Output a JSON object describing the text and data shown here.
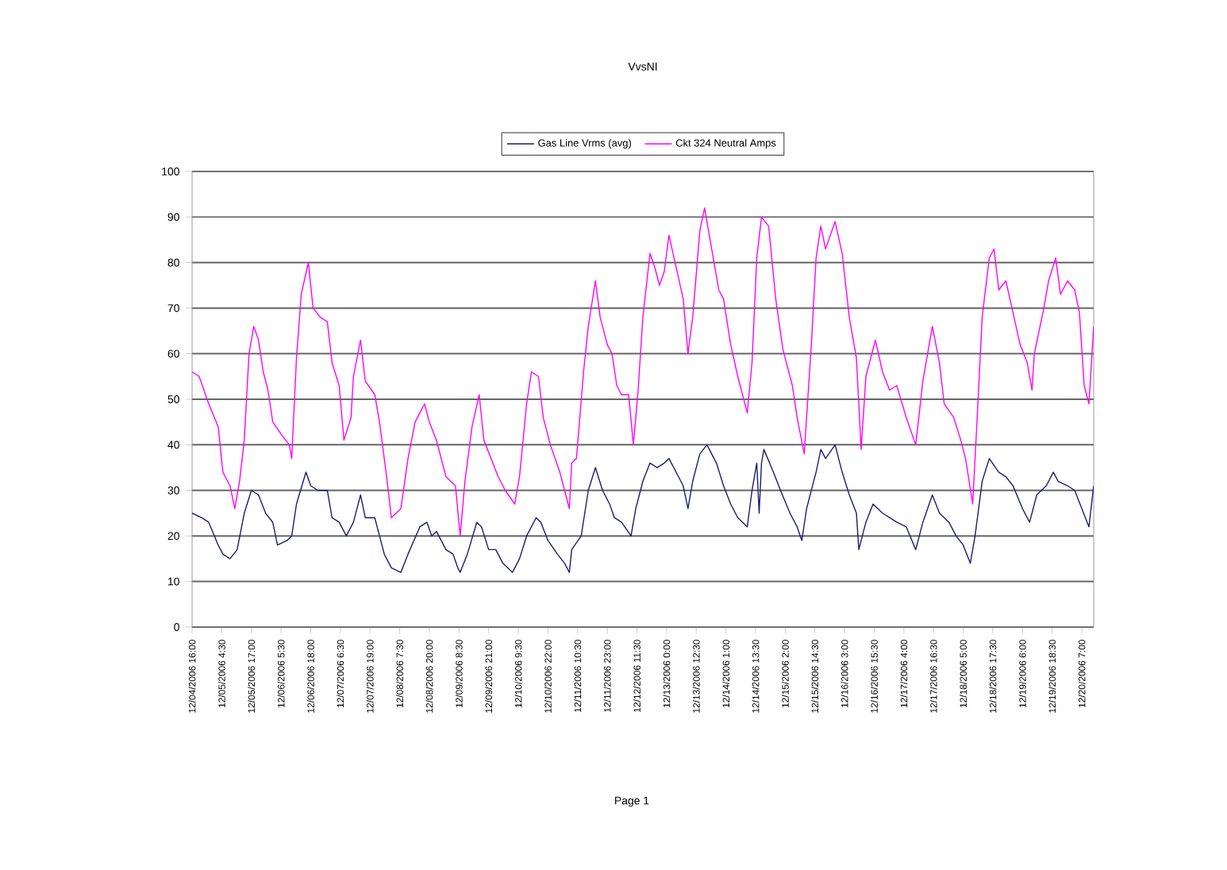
{
  "chart_data": {
    "type": "line",
    "title": "VvsNI",
    "xlim": [
      "2006-12-04T16:00",
      "2006-12-20T12:00"
    ],
    "ylim": [
      0,
      100
    ],
    "yticks": [
      0,
      10,
      20,
      30,
      40,
      50,
      60,
      70,
      80,
      90,
      100
    ],
    "xticks": [
      {
        "value": "2006-12-04T16:00",
        "label": "12/04/2006 16:00"
      },
      {
        "value": "2006-12-05T04:30",
        "label": "12/05/2006 4:30"
      },
      {
        "value": "2006-12-05T17:00",
        "label": "12/05/2006 17:00"
      },
      {
        "value": "2006-12-06T05:30",
        "label": "12/06/2006 5:30"
      },
      {
        "value": "2006-12-06T18:00",
        "label": "12/06/2006 18:00"
      },
      {
        "value": "2006-12-07T06:30",
        "label": "12/07/2006 6:30"
      },
      {
        "value": "2006-12-07T19:00",
        "label": "12/07/2006 19:00"
      },
      {
        "value": "2006-12-08T07:30",
        "label": "12/08/2006 7:30"
      },
      {
        "value": "2006-12-08T20:00",
        "label": "12/08/2006 20:00"
      },
      {
        "value": "2006-12-09T08:30",
        "label": "12/09/2006 8:30"
      },
      {
        "value": "2006-12-09T21:00",
        "label": "12/09/2006 21:00"
      },
      {
        "value": "2006-12-10T09:30",
        "label": "12/10/2006 9:30"
      },
      {
        "value": "2006-12-10T22:00",
        "label": "12/10/2006 22:00"
      },
      {
        "value": "2006-12-11T10:30",
        "label": "12/11/2006 10:30"
      },
      {
        "value": "2006-12-11T23:00",
        "label": "12/11/2006 23:00"
      },
      {
        "value": "2006-12-12T11:30",
        "label": "12/12/2006 11:30"
      },
      {
        "value": "2006-12-13T00:00",
        "label": "12/13/2006 0:00"
      },
      {
        "value": "2006-12-13T12:30",
        "label": "12/13/2006 12:30"
      },
      {
        "value": "2006-12-14T01:00",
        "label": "12/14/2006 1:00"
      },
      {
        "value": "2006-12-14T13:30",
        "label": "12/14/2006 13:30"
      },
      {
        "value": "2006-12-15T02:00",
        "label": "12/15/2006 2:00"
      },
      {
        "value": "2006-12-15T14:30",
        "label": "12/15/2006 14:30"
      },
      {
        "value": "2006-12-16T03:00",
        "label": "12/16/2006 3:00"
      },
      {
        "value": "2006-12-16T15:30",
        "label": "12/16/2006 15:30"
      },
      {
        "value": "2006-12-17T04:00",
        "label": "12/17/2006 4:00"
      },
      {
        "value": "2006-12-17T16:30",
        "label": "12/17/2006 16:30"
      },
      {
        "value": "2006-12-18T05:00",
        "label": "12/18/2006 5:00"
      },
      {
        "value": "2006-12-18T17:30",
        "label": "12/18/2006 17:30"
      },
      {
        "value": "2006-12-19T06:00",
        "label": "12/19/2006 6:00"
      },
      {
        "value": "2006-12-19T18:30",
        "label": "12/19/2006 18:30"
      },
      {
        "value": "2006-12-20T07:00",
        "label": "12/20/2006 7:00"
      }
    ],
    "grid": "y",
    "legend": "top",
    "marker": "none",
    "line_style": "solid",
    "annotations": [
      "Page 1"
    ],
    "series": [
      {
        "name": "Gas Line Vrms (avg)",
        "color": "#1c1c6e",
        "x": [
          "2006-12-04T16:00",
          "2006-12-04T20:00",
          "2006-12-04T23:00",
          "2006-12-05T03:00",
          "2006-12-05T05:00",
          "2006-12-05T08:00",
          "2006-12-05T11:00",
          "2006-12-05T14:00",
          "2006-12-05T17:00",
          "2006-12-05T20:00",
          "2006-12-05T23:00",
          "2006-12-06T02:00",
          "2006-12-06T04:00",
          "2006-12-06T08:00",
          "2006-12-06T10:00",
          "2006-12-06T12:00",
          "2006-12-06T16:00",
          "2006-12-06T18:00",
          "2006-12-06T21:00",
          "2006-12-07T01:00",
          "2006-12-07T03:00",
          "2006-12-07T06:00",
          "2006-12-07T09:00",
          "2006-12-07T12:00",
          "2006-12-07T15:00",
          "2006-12-07T17:00",
          "2006-12-07T21:00",
          "2006-12-07T23:00",
          "2006-12-08T01:00",
          "2006-12-08T04:00",
          "2006-12-08T08:00",
          "2006-12-08T11:00",
          "2006-12-08T16:00",
          "2006-12-08T19:00",
          "2006-12-08T21:00",
          "2006-12-08T23:00",
          "2006-12-09T03:00",
          "2006-12-09T06:00",
          "2006-12-09T08:00",
          "2006-12-09T09:00",
          "2006-12-09T12:00",
          "2006-12-09T16:00",
          "2006-12-09T18:00",
          "2006-12-09T21:00",
          "2006-12-10T00:00",
          "2006-12-10T03:00",
          "2006-12-10T07:00",
          "2006-12-10T10:00",
          "2006-12-10T13:00",
          "2006-12-10T17:00",
          "2006-12-10T19:00",
          "2006-12-10T22:00",
          "2006-12-11T02:00",
          "2006-12-11T05:00",
          "2006-12-11T07:00",
          "2006-12-11T08:00",
          "2006-12-11T12:00",
          "2006-12-11T15:00",
          "2006-12-11T18:00",
          "2006-12-11T21:00",
          "2006-12-12T00:00",
          "2006-12-12T02:00",
          "2006-12-12T05:00",
          "2006-12-12T09:00",
          "2006-12-12T11:00",
          "2006-12-12T14:00",
          "2006-12-12T17:00",
          "2006-12-12T20:00",
          "2006-12-12T23:00",
          "2006-12-13T01:00",
          "2006-12-13T05:00",
          "2006-12-13T07:00",
          "2006-12-13T09:00",
          "2006-12-13T11:00",
          "2006-12-13T14:00",
          "2006-12-13T17:00",
          "2006-12-13T21:00",
          "2006-12-14T00:00",
          "2006-12-14T03:00",
          "2006-12-14T06:00",
          "2006-12-14T10:00",
          "2006-12-14T12:00",
          "2006-12-14T14:00",
          "2006-12-14T15:00",
          "2006-12-14T16:00",
          "2006-12-14T17:00",
          "2006-12-14T21:00",
          "2006-12-15T00:00",
          "2006-12-15T04:00",
          "2006-12-15T07:00",
          "2006-12-15T09:00",
          "2006-12-15T11:00",
          "2006-12-15T15:00",
          "2006-12-15T17:00",
          "2006-12-15T19:00",
          "2006-12-15T23:00",
          "2006-12-16T02:00",
          "2006-12-16T05:00",
          "2006-12-16T08:00",
          "2006-12-16T09:00",
          "2006-12-16T12:00",
          "2006-12-16T15:00",
          "2006-12-16T19:00",
          "2006-12-16T22:00",
          "2006-12-17T01:00",
          "2006-12-17T05:00",
          "2006-12-17T09:00",
          "2006-12-17T12:00",
          "2006-12-17T16:00",
          "2006-12-17T19:00",
          "2006-12-17T23:00",
          "2006-12-18T02:00",
          "2006-12-18T05:00",
          "2006-12-18T08:00",
          "2006-12-18T10:00",
          "2006-12-18T13:00",
          "2006-12-18T16:00",
          "2006-12-18T20:00",
          "2006-12-18T23:00",
          "2006-12-19T02:00",
          "2006-12-19T06:00",
          "2006-12-19T09:00",
          "2006-12-19T12:00",
          "2006-12-19T16:00",
          "2006-12-19T19:00",
          "2006-12-19T21:00",
          "2006-12-20T01:00",
          "2006-12-20T04:00",
          "2006-12-20T07:00",
          "2006-12-20T10:00",
          "2006-12-20T12:00"
        ],
        "values": [
          25,
          24,
          23,
          18,
          16,
          15,
          17,
          25,
          30,
          29,
          25,
          23,
          18,
          19,
          20,
          27,
          34,
          31,
          30,
          30,
          24,
          23,
          20,
          23,
          29,
          24,
          24,
          20,
          16,
          13,
          12,
          16,
          22,
          23,
          20,
          21,
          17,
          16,
          13,
          12,
          16,
          23,
          22,
          17,
          17,
          14,
          12,
          15,
          20,
          24,
          23,
          19,
          16,
          14,
          12,
          17,
          20,
          30,
          35,
          30,
          27,
          24,
          23,
          20,
          26,
          32,
          36,
          35,
          36,
          37,
          33,
          31,
          26,
          32,
          38,
          40,
          36,
          31,
          27,
          24,
          22,
          30,
          36,
          25,
          36,
          39,
          34,
          30,
          25,
          22,
          19,
          26,
          34,
          39,
          37,
          40,
          34,
          29,
          25,
          17,
          23,
          27,
          25,
          24,
          23,
          22,
          17,
          23,
          29,
          25,
          23,
          20,
          18,
          14,
          20,
          32,
          37,
          34,
          33,
          31,
          26,
          23,
          29,
          31,
          34,
          32,
          31,
          30,
          26,
          22,
          31
        ]
      },
      {
        "name": "Ckt 324 Neutral Amps",
        "color": "#ff00ff",
        "x": [
          "2006-12-04T16:00",
          "2006-12-04T19:00",
          "2006-12-04T23:00",
          "2006-12-05T03:00",
          "2006-12-05T05:00",
          "2006-12-05T08:00",
          "2006-12-05T10:00",
          "2006-12-05T12:00",
          "2006-12-05T14:00",
          "2006-12-05T16:00",
          "2006-12-05T18:00",
          "2006-12-05T20:00",
          "2006-12-05T22:00",
          "2006-12-06T00:00",
          "2006-12-06T02:00",
          "2006-12-06T06:00",
          "2006-12-06T09:00",
          "2006-12-06T10:00",
          "2006-12-06T12:00",
          "2006-12-06T14:00",
          "2006-12-06T17:00",
          "2006-12-06T19:00",
          "2006-12-06T22:00",
          "2006-12-07T01:00",
          "2006-12-07T03:00",
          "2006-12-07T06:00",
          "2006-12-07T08:00",
          "2006-12-07T11:00",
          "2006-12-07T12:00",
          "2006-12-07T15:00",
          "2006-12-07T17:00",
          "2006-12-07T21:00",
          "2006-12-07T23:00",
          "2006-12-08T02:00",
          "2006-12-08T04:00",
          "2006-12-08T08:00",
          "2006-12-08T11:00",
          "2006-12-08T14:00",
          "2006-12-08T18:00",
          "2006-12-08T20:00",
          "2006-12-08T23:00",
          "2006-12-09T03:00",
          "2006-12-09T07:00",
          "2006-12-09T09:00",
          "2006-12-09T11:00",
          "2006-12-09T14:00",
          "2006-12-09T17:00",
          "2006-12-09T19:00",
          "2006-12-09T22:00",
          "2006-12-10T01:00",
          "2006-12-10T04:00",
          "2006-12-10T08:00",
          "2006-12-10T10:00",
          "2006-12-10T13:00",
          "2006-12-10T15:00",
          "2006-12-10T18:00",
          "2006-12-10T20:00",
          "2006-12-10T23:00",
          "2006-12-11T03:00",
          "2006-12-11T07:00",
          "2006-12-11T08:00",
          "2006-12-11T10:00",
          "2006-12-11T13:00",
          "2006-12-11T15:00",
          "2006-12-11T18:00",
          "2006-12-11T20:00",
          "2006-12-11T23:00",
          "2006-12-12T01:00",
          "2006-12-12T03:00",
          "2006-12-12T05:00",
          "2006-12-12T08:00",
          "2006-12-12T10:00",
          "2006-12-12T12:00",
          "2006-12-12T14:00",
          "2006-12-12T17:00",
          "2006-12-12T19:00",
          "2006-12-12T21:00",
          "2006-12-12T23:00",
          "2006-12-13T01:00",
          "2006-12-13T04:00",
          "2006-12-13T07:00",
          "2006-12-13T09:00",
          "2006-12-13T11:00",
          "2006-12-13T14:00",
          "2006-12-13T16:00",
          "2006-12-13T19:00",
          "2006-12-13T22:00",
          "2006-12-14T00:00",
          "2006-12-14T03:00",
          "2006-12-14T06:00",
          "2006-12-14T10:00",
          "2006-12-14T12:00",
          "2006-12-14T14:00",
          "2006-12-14T16:00",
          "2006-12-14T19:00",
          "2006-12-14T22:00",
          "2006-12-15T01:00",
          "2006-12-15T05:00",
          "2006-12-15T07:00",
          "2006-12-15T10:00",
          "2006-12-15T13:00",
          "2006-12-15T15:00",
          "2006-12-15T17:00",
          "2006-12-15T19:00",
          "2006-12-15T23:00",
          "2006-12-16T02:00",
          "2006-12-16T05:00",
          "2006-12-16T08:00",
          "2006-12-16T10:00",
          "2006-12-16T12:00",
          "2006-12-16T16:00",
          "2006-12-16T19:00",
          "2006-12-16T22:00",
          "2006-12-17T01:00",
          "2006-12-17T05:00",
          "2006-12-17T09:00",
          "2006-12-17T12:00",
          "2006-12-17T16:00",
          "2006-12-17T19:00",
          "2006-12-17T21:00",
          "2006-12-18T01:00",
          "2006-12-18T04:00",
          "2006-12-18T06:00",
          "2006-12-18T09:00",
          "2006-12-18T11:00",
          "2006-12-18T13:00",
          "2006-12-18T16:00",
          "2006-12-18T18:00",
          "2006-12-18T20:00",
          "2006-12-18T23:00",
          "2006-12-19T02:00",
          "2006-12-19T05:00",
          "2006-12-19T08:00",
          "2006-12-19T10:00",
          "2006-12-19T11:00",
          "2006-12-19T15:00",
          "2006-12-19T17:00",
          "2006-12-19T20:00",
          "2006-12-19T22:00",
          "2006-12-20T01:00",
          "2006-12-20T04:00",
          "2006-12-20T06:00",
          "2006-12-20T08:00",
          "2006-12-20T10:00",
          "2006-12-20T12:00"
        ],
        "values": [
          56,
          55,
          49,
          44,
          34,
          31,
          26,
          32,
          41,
          60,
          66,
          63,
          56,
          52,
          45,
          42,
          40,
          37,
          59,
          73,
          80,
          70,
          68,
          67,
          58,
          53,
          41,
          46,
          55,
          63,
          54,
          51,
          45,
          33,
          24,
          26,
          37,
          45,
          49,
          45,
          41,
          33,
          31,
          20,
          32,
          44,
          51,
          41,
          37,
          33,
          30,
          27,
          33,
          49,
          56,
          55,
          46,
          40,
          34,
          26,
          36,
          37,
          56,
          66,
          76,
          68,
          62,
          60,
          53,
          51,
          51,
          40,
          52,
          68,
          82,
          79,
          75,
          78,
          86,
          79,
          72,
          60,
          68,
          87,
          92,
          83,
          74,
          72,
          62,
          55,
          47,
          58,
          81,
          90,
          88,
          72,
          61,
          53,
          46,
          38,
          62,
          81,
          88,
          83,
          89,
          82,
          68,
          59,
          39,
          55,
          63,
          56,
          52,
          53,
          46,
          40,
          54,
          66,
          58,
          49,
          46,
          41,
          37,
          27,
          47,
          68,
          81,
          83,
          74,
          76,
          69,
          62,
          58,
          52,
          60,
          70,
          76,
          81,
          73,
          76,
          74,
          69,
          53,
          49,
          66
        ]
      }
    ]
  }
}
